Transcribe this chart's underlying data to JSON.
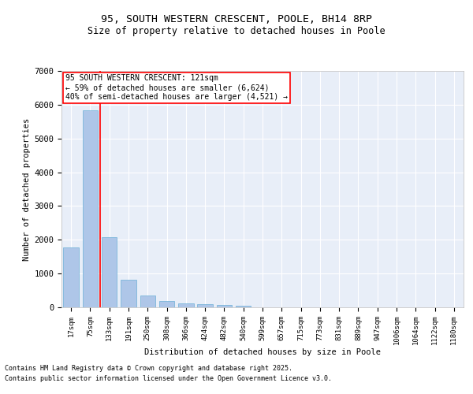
{
  "title_line1": "95, SOUTH WESTERN CRESCENT, POOLE, BH14 8RP",
  "title_line2": "Size of property relative to detached houses in Poole",
  "xlabel": "Distribution of detached houses by size in Poole",
  "ylabel": "Number of detached properties",
  "categories": [
    "17sqm",
    "75sqm",
    "133sqm",
    "191sqm",
    "250sqm",
    "308sqm",
    "366sqm",
    "424sqm",
    "482sqm",
    "540sqm",
    "599sqm",
    "657sqm",
    "715sqm",
    "773sqm",
    "831sqm",
    "889sqm",
    "947sqm",
    "1006sqm",
    "1064sqm",
    "1122sqm",
    "1180sqm"
  ],
  "values": [
    1780,
    5830,
    2080,
    820,
    340,
    185,
    115,
    95,
    75,
    55,
    0,
    0,
    0,
    0,
    0,
    0,
    0,
    0,
    0,
    0,
    0
  ],
  "bar_color": "#aec6e8",
  "bar_edge_color": "#6aaed6",
  "highlight_line_color": "red",
  "annotation_text": "95 SOUTH WESTERN CRESCENT: 121sqm\n← 59% of detached houses are smaller (6,624)\n40% of semi-detached houses are larger (4,521) →",
  "annotation_box_color": "white",
  "annotation_box_edge": "red",
  "ylim": [
    0,
    7000
  ],
  "yticks": [
    0,
    1000,
    2000,
    3000,
    4000,
    5000,
    6000,
    7000
  ],
  "background_color": "#e8eef8",
  "grid_color": "white",
  "footer_line1": "Contains HM Land Registry data © Crown copyright and database right 2025.",
  "footer_line2": "Contains public sector information licensed under the Open Government Licence v3.0."
}
